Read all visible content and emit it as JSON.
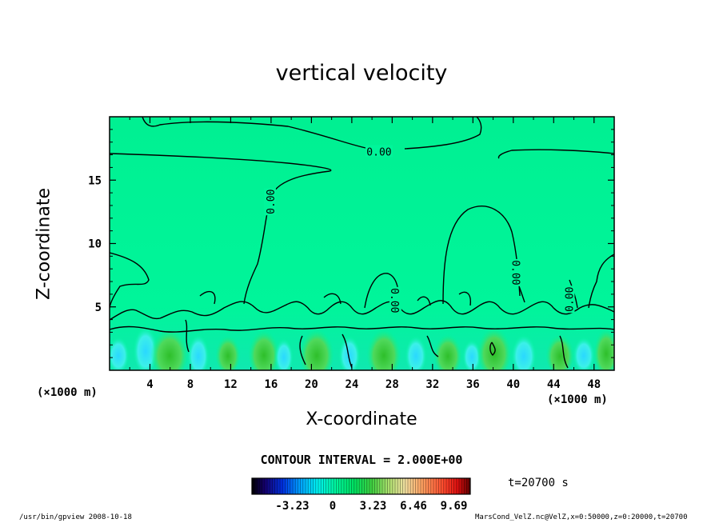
{
  "chart_data": {
    "type": "heatmap",
    "title": "vertical velocity",
    "xlabel": "X-coordinate",
    "ylabel": "Z-coordinate",
    "x_unit_label": "(×1000 m)",
    "xlim": [
      0,
      50
    ],
    "ylim": [
      0,
      20
    ],
    "x_ticks": [
      4,
      8,
      12,
      16,
      20,
      24,
      28,
      32,
      36,
      40,
      44,
      48
    ],
    "y_ticks": [
      5,
      10,
      15
    ],
    "contour_labels": [
      "0.00"
    ],
    "contour_interval": "CONTOUR INTERVAL = 2.000E+00",
    "colorbar": {
      "ticks": [
        -3.23,
        0,
        3.23,
        6.46,
        9.69
      ],
      "tick_labels": [
        "-3.23",
        "0",
        "3.23",
        "6.46",
        "9.69"
      ],
      "range": [
        -6.46,
        11.0
      ]
    },
    "time_label": "t=20700 s"
  },
  "footer": {
    "left": "/usr/bin/gpview  2008-10-18",
    "right": "MarsCond_VelZ.nc@VelZ,x=0:50000,z=0:20000,t=20700"
  },
  "colors": {
    "background_field": "#00f596",
    "updraft": "#2ec832",
    "downdraft": "#3ae4ff"
  }
}
